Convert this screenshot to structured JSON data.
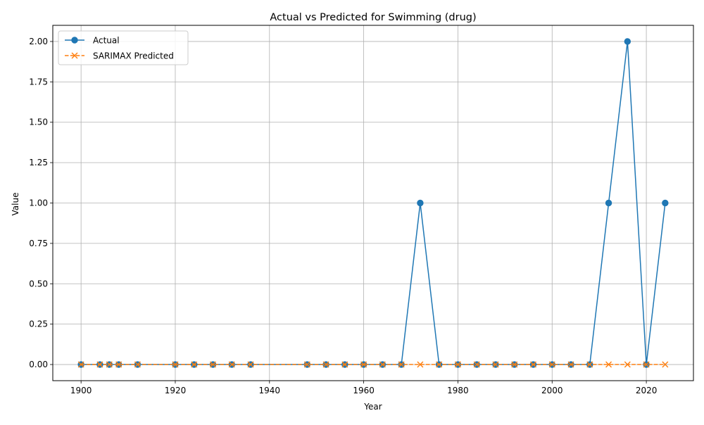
{
  "chart_data": {
    "type": "line",
    "title": "Actual vs Predicted for Swimming (drug)",
    "xlabel": "Year",
    "ylabel": "Value",
    "xlim": [
      1894,
      2030
    ],
    "ylim": [
      -0.1,
      2.1
    ],
    "xticks": [
      1900,
      1920,
      1940,
      1960,
      1980,
      2000,
      2020
    ],
    "yticks": [
      0.0,
      0.25,
      0.5,
      0.75,
      1.0,
      1.25,
      1.5,
      1.75,
      2.0
    ],
    "xtick_labels": [
      "1900",
      "1920",
      "1940",
      "1960",
      "1980",
      "2000",
      "2020"
    ],
    "ytick_labels": [
      "0.00",
      "0.25",
      "0.50",
      "0.75",
      "1.00",
      "1.25",
      "1.50",
      "1.75",
      "2.00"
    ],
    "grid": true,
    "legend_position": "top-left",
    "x": [
      1900,
      1904,
      1906,
      1908,
      1912,
      1920,
      1924,
      1928,
      1932,
      1936,
      1948,
      1952,
      1956,
      1960,
      1964,
      1968,
      1972,
      1976,
      1980,
      1984,
      1988,
      1992,
      1996,
      2000,
      2004,
      2008,
      2012,
      2016,
      2020,
      2024
    ],
    "series": [
      {
        "name": "Actual",
        "color": "#1f77b4",
        "marker": "circle",
        "linestyle": "solid",
        "values": [
          0,
          0,
          0,
          0,
          0,
          0,
          0,
          0,
          0,
          0,
          0,
          0,
          0,
          0,
          0,
          0,
          1,
          0,
          0,
          0,
          0,
          0,
          0,
          0,
          0,
          0,
          1,
          2,
          0,
          1
        ]
      },
      {
        "name": "SARIMAX Predicted",
        "color": "#ff7f0e",
        "marker": "x",
        "linestyle": "dashed",
        "values": [
          0,
          0,
          0,
          0,
          0,
          0,
          0,
          0,
          0,
          0,
          0,
          0,
          0,
          0,
          0,
          0,
          0,
          0,
          0,
          0,
          0,
          0,
          0,
          0,
          0,
          0,
          0,
          0,
          0,
          0
        ]
      }
    ]
  }
}
